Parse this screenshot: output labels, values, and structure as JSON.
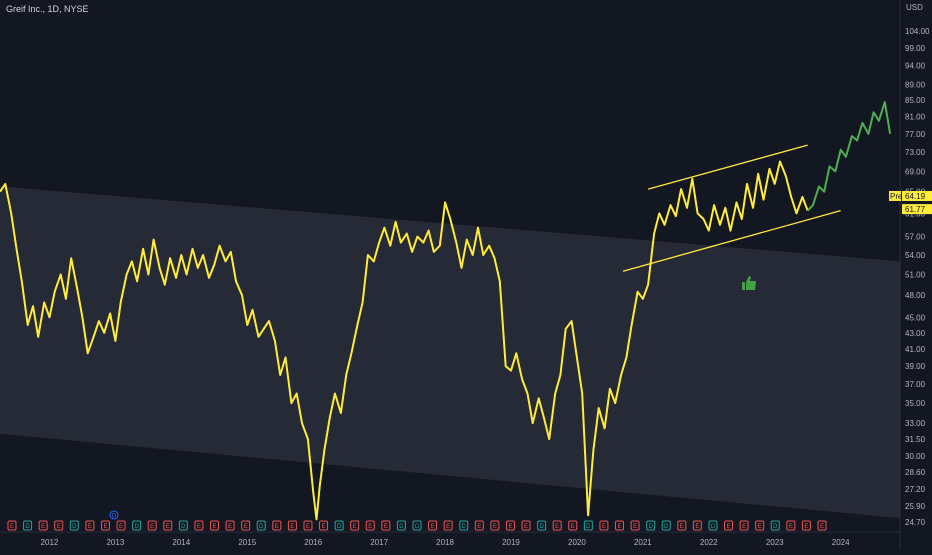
{
  "chart_data": {
    "type": "line",
    "title": "Greif Inc., 1D, NYSE",
    "currency": "USD",
    "x_ticks": [
      "2012",
      "2013",
      "2014",
      "2015",
      "2016",
      "2017",
      "2018",
      "2019",
      "2020",
      "2021",
      "2022",
      "2023",
      "2024"
    ],
    "y_ticks": [
      104.0,
      99.0,
      94.0,
      89.0,
      85.0,
      81.0,
      77.0,
      73.0,
      69.0,
      65.0,
      61.0,
      57.0,
      54.0,
      51.0,
      48.0,
      45.0,
      43.0,
      41.0,
      39.0,
      37.0,
      35.0,
      33.0,
      31.5,
      30.0,
      28.6,
      27.2,
      25.9,
      24.7
    ],
    "ylim": [
      24.0,
      110.0
    ],
    "y_scale": "log",
    "price_labels": {
      "current": "64.19",
      "current_badge": "Pre",
      "secondary": "61.77"
    },
    "series": [
      {
        "color": "#ffeb3b",
        "points": [
          [
            2011.25,
            65.0
          ],
          [
            2011.33,
            66.5
          ],
          [
            2011.42,
            61.0
          ],
          [
            2011.5,
            55.0
          ],
          [
            2011.58,
            50.0
          ],
          [
            2011.67,
            44.0
          ],
          [
            2011.75,
            46.5
          ],
          [
            2011.83,
            42.5
          ],
          [
            2011.92,
            47.0
          ],
          [
            2012.0,
            45.0
          ],
          [
            2012.08,
            48.5
          ],
          [
            2012.17,
            51.0
          ],
          [
            2012.25,
            47.5
          ],
          [
            2012.33,
            53.5
          ],
          [
            2012.42,
            49.0
          ],
          [
            2012.5,
            45.0
          ],
          [
            2012.58,
            40.5
          ],
          [
            2012.67,
            42.5
          ],
          [
            2012.75,
            44.5
          ],
          [
            2012.83,
            43.0
          ],
          [
            2012.92,
            45.5
          ],
          [
            2013.0,
            42.0
          ],
          [
            2013.08,
            47.0
          ],
          [
            2013.17,
            51.0
          ],
          [
            2013.25,
            53.0
          ],
          [
            2013.33,
            50.0
          ],
          [
            2013.42,
            55.0
          ],
          [
            2013.5,
            51.0
          ],
          [
            2013.58,
            56.5
          ],
          [
            2013.67,
            52.0
          ],
          [
            2013.75,
            49.5
          ],
          [
            2013.83,
            53.5
          ],
          [
            2013.92,
            50.5
          ],
          [
            2014.0,
            54.0
          ],
          [
            2014.08,
            51.0
          ],
          [
            2014.17,
            55.0
          ],
          [
            2014.25,
            52.0
          ],
          [
            2014.33,
            54.0
          ],
          [
            2014.42,
            50.5
          ],
          [
            2014.5,
            52.5
          ],
          [
            2014.58,
            55.5
          ],
          [
            2014.67,
            53.0
          ],
          [
            2014.75,
            54.5
          ],
          [
            2014.83,
            50.0
          ],
          [
            2014.92,
            48.0
          ],
          [
            2015.0,
            44.0
          ],
          [
            2015.08,
            46.0
          ],
          [
            2015.17,
            42.5
          ],
          [
            2015.25,
            43.5
          ],
          [
            2015.33,
            44.5
          ],
          [
            2015.42,
            42.0
          ],
          [
            2015.5,
            38.0
          ],
          [
            2015.58,
            40.0
          ],
          [
            2015.67,
            35.0
          ],
          [
            2015.75,
            36.0
          ],
          [
            2015.83,
            33.0
          ],
          [
            2015.92,
            31.5
          ],
          [
            2016.0,
            27.0
          ],
          [
            2016.05,
            24.9
          ],
          [
            2016.1,
            27.5
          ],
          [
            2016.17,
            30.5
          ],
          [
            2016.25,
            33.5
          ],
          [
            2016.33,
            36.0
          ],
          [
            2016.42,
            34.0
          ],
          [
            2016.5,
            38.0
          ],
          [
            2016.58,
            40.5
          ],
          [
            2016.67,
            44.0
          ],
          [
            2016.75,
            47.0
          ],
          [
            2016.83,
            54.0
          ],
          [
            2016.92,
            53.0
          ],
          [
            2017.0,
            56.0
          ],
          [
            2017.08,
            58.5
          ],
          [
            2017.17,
            55.5
          ],
          [
            2017.25,
            59.5
          ],
          [
            2017.33,
            56.0
          ],
          [
            2017.42,
            57.5
          ],
          [
            2017.5,
            54.5
          ],
          [
            2017.58,
            57.0
          ],
          [
            2017.67,
            56.0
          ],
          [
            2017.75,
            58.0
          ],
          [
            2017.83,
            54.5
          ],
          [
            2017.92,
            55.5
          ],
          [
            2018.0,
            63.0
          ],
          [
            2018.08,
            60.0
          ],
          [
            2018.17,
            56.0
          ],
          [
            2018.25,
            52.0
          ],
          [
            2018.33,
            56.5
          ],
          [
            2018.42,
            54.0
          ],
          [
            2018.5,
            58.5
          ],
          [
            2018.58,
            54.0
          ],
          [
            2018.67,
            55.5
          ],
          [
            2018.75,
            53.5
          ],
          [
            2018.83,
            50.0
          ],
          [
            2018.92,
            39.0
          ],
          [
            2019.0,
            38.5
          ],
          [
            2019.08,
            40.5
          ],
          [
            2019.17,
            37.5
          ],
          [
            2019.25,
            36.0
          ],
          [
            2019.33,
            33.0
          ],
          [
            2019.42,
            35.5
          ],
          [
            2019.5,
            33.5
          ],
          [
            2019.58,
            31.5
          ],
          [
            2019.67,
            36.0
          ],
          [
            2019.75,
            38.0
          ],
          [
            2019.83,
            43.5
          ],
          [
            2019.92,
            44.5
          ],
          [
            2020.0,
            40.0
          ],
          [
            2020.08,
            36.0
          ],
          [
            2020.17,
            25.2
          ],
          [
            2020.25,
            30.5
          ],
          [
            2020.33,
            34.5
          ],
          [
            2020.42,
            32.5
          ],
          [
            2020.5,
            36.5
          ],
          [
            2020.58,
            35.0
          ],
          [
            2020.67,
            38.0
          ],
          [
            2020.75,
            40.0
          ],
          [
            2020.83,
            44.0
          ],
          [
            2020.92,
            48.5
          ],
          [
            2021.0,
            47.5
          ],
          [
            2021.08,
            49.5
          ],
          [
            2021.17,
            57.5
          ],
          [
            2021.25,
            61.0
          ],
          [
            2021.33,
            59.0
          ],
          [
            2021.42,
            62.5
          ],
          [
            2021.5,
            60.5
          ],
          [
            2021.58,
            65.5
          ],
          [
            2021.67,
            62.0
          ],
          [
            2021.75,
            67.5
          ],
          [
            2021.83,
            61.0
          ],
          [
            2021.92,
            60.0
          ],
          [
            2022.0,
            58.0
          ],
          [
            2022.08,
            62.5
          ],
          [
            2022.17,
            59.0
          ],
          [
            2022.25,
            62.0
          ],
          [
            2022.33,
            58.0
          ],
          [
            2022.42,
            63.0
          ],
          [
            2022.5,
            60.0
          ],
          [
            2022.58,
            66.5
          ],
          [
            2022.67,
            62.0
          ],
          [
            2022.75,
            68.5
          ],
          [
            2022.83,
            63.5
          ],
          [
            2022.92,
            69.5
          ],
          [
            2023.0,
            66.5
          ],
          [
            2023.08,
            71.0
          ],
          [
            2023.17,
            68.0
          ],
          [
            2023.25,
            64.0
          ],
          [
            2023.33,
            61.0
          ],
          [
            2023.42,
            64.0
          ],
          [
            2023.5,
            61.5
          ]
        ]
      },
      {
        "color": "#4caf50",
        "points": [
          [
            2023.5,
            61.5
          ],
          [
            2023.58,
            62.5
          ],
          [
            2023.67,
            66.0
          ],
          [
            2023.75,
            65.0
          ],
          [
            2023.83,
            70.0
          ],
          [
            2023.92,
            69.0
          ],
          [
            2024.0,
            73.5
          ],
          [
            2024.08,
            72.0
          ],
          [
            2024.17,
            76.5
          ],
          [
            2024.25,
            75.5
          ],
          [
            2024.33,
            79.5
          ],
          [
            2024.42,
            77.0
          ],
          [
            2024.5,
            82.0
          ],
          [
            2024.58,
            80.0
          ],
          [
            2024.67,
            84.5
          ],
          [
            2024.75,
            77.0
          ]
        ]
      }
    ],
    "trend_lines": [
      {
        "color": "#ffeb3b",
        "from": [
          2021.08,
          65.5
        ],
        "to": [
          2023.5,
          74.5
        ]
      },
      {
        "color": "#ffeb3b",
        "from": [
          2020.7,
          51.5
        ],
        "to": [
          2024.0,
          61.5
        ]
      }
    ],
    "channel_band": {
      "upper": {
        "from": [
          2011.25,
          66.0
        ],
        "to": [
          2024.9,
          53.0
        ]
      },
      "lower": {
        "from": [
          2011.25,
          32.0
        ],
        "to": [
          2024.9,
          25.0
        ]
      }
    },
    "event_markers": [
      "E",
      "D",
      "E",
      "E",
      "D",
      "E",
      "E",
      "E",
      "D",
      "E",
      "E",
      "D",
      "E",
      "E",
      "E",
      "E",
      "D",
      "E",
      "E",
      "E",
      "E",
      "D",
      "E",
      "E",
      "E",
      "D",
      "D",
      "E",
      "E",
      "D",
      "E",
      "E",
      "E",
      "E",
      "D",
      "E",
      "E",
      "D",
      "E",
      "E",
      "E",
      "D",
      "D",
      "E",
      "E",
      "D",
      "E",
      "E",
      "E",
      "D",
      "E",
      "E",
      "E"
    ]
  }
}
